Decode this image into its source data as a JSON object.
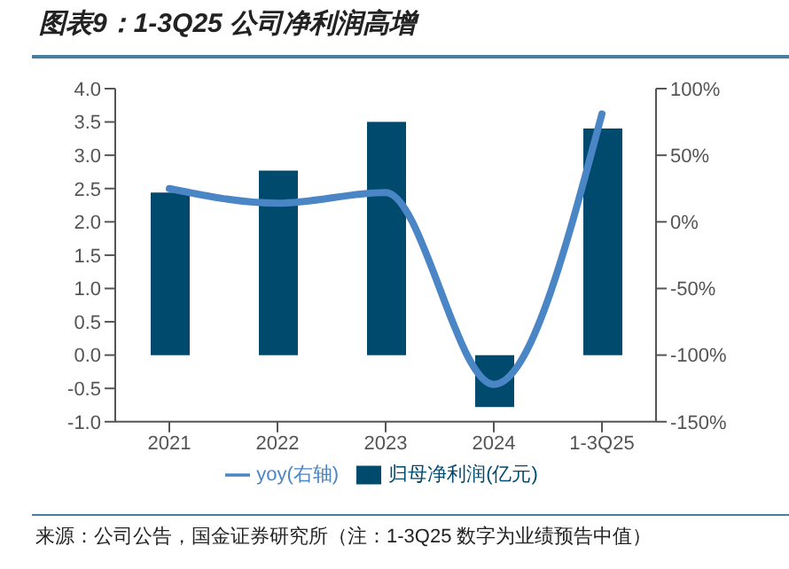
{
  "chart_data": {
    "type": "bar",
    "title": "图表9：1-3Q25 公司净利润高增",
    "categories": [
      "2021",
      "2022",
      "2023",
      "2024",
      "1-3Q25"
    ],
    "series": [
      {
        "name": "归母净利润(亿元)",
        "color": "#004a6e",
        "values": [
          2.44,
          2.77,
          3.5,
          -0.78,
          3.4
        ]
      },
      {
        "name": "yoy(右轴)",
        "type": "line",
        "axis": "y2",
        "color": "#4a86c6",
        "values": [
          25,
          14,
          22,
          -122,
          81
        ]
      }
    ],
    "ylim": [
      -1,
      4
    ],
    "yticks": [
      {
        "value": -1,
        "label": "-1.0"
      },
      {
        "value": -0.5,
        "label": "-0.5"
      },
      {
        "value": 0,
        "label": "0.0"
      },
      {
        "value": 0.5,
        "label": "0.5"
      },
      {
        "value": 1,
        "label": "1.0"
      },
      {
        "value": 1.5,
        "label": "1.5"
      },
      {
        "value": 2,
        "label": "2.0"
      },
      {
        "value": 2.5,
        "label": "2.5"
      },
      {
        "value": 3,
        "label": "3.0"
      },
      {
        "value": 3.5,
        "label": "3.5"
      },
      {
        "value": 4,
        "label": "4.0"
      }
    ],
    "y2lim": [
      -150,
      100
    ],
    "y2ticks": [
      {
        "value": -150,
        "label": "-150%"
      },
      {
        "value": -100,
        "label": "-100%"
      },
      {
        "value": -50,
        "label": "-50%"
      },
      {
        "value": 0,
        "label": "0%"
      },
      {
        "value": 50,
        "label": "50%"
      },
      {
        "value": 100,
        "label": "100%"
      }
    ],
    "grid": false,
    "legend": "bottom",
    "marker": "none",
    "annotations": [
      "来源：公司公告，国金证券研究所（注：1-3Q25 数字为业绩预告中值）"
    ]
  }
}
